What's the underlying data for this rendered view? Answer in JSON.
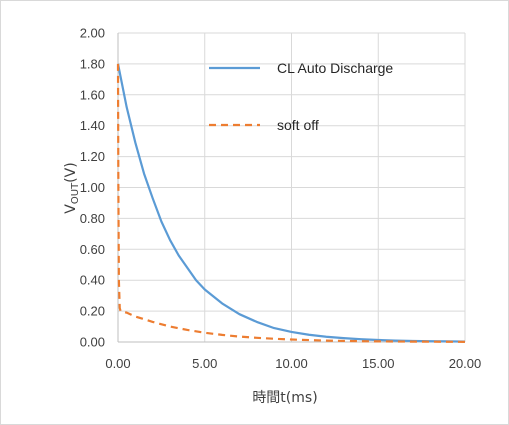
{
  "chart_data": {
    "type": "line",
    "title": "",
    "xlabel": "時間t(ms)",
    "ylabel": {
      "main": "V",
      "sub": "OUT",
      "suffix": "(V)"
    },
    "xlim": [
      0,
      20
    ],
    "ylim": [
      0,
      2
    ],
    "xticks": [
      "0.00",
      "5.00",
      "10.00",
      "15.00",
      "20.00"
    ],
    "yticks": [
      "0.00",
      "0.20",
      "0.40",
      "0.60",
      "0.80",
      "1.00",
      "1.20",
      "1.40",
      "1.60",
      "1.80",
      "2.00"
    ],
    "grid": true,
    "legend_position": "top-right (inside plot)",
    "series": [
      {
        "name": "CL Auto Discharge",
        "color": "#5b9bd5",
        "dash": "solid",
        "x": [
          0,
          0.5,
          1,
          1.5,
          2,
          2.5,
          3,
          3.5,
          4,
          4.5,
          5,
          6,
          7,
          8,
          9,
          10,
          11,
          12,
          13,
          14,
          15,
          16,
          17,
          18,
          19,
          20
        ],
        "y": [
          1.8,
          1.52,
          1.29,
          1.09,
          0.93,
          0.78,
          0.66,
          0.56,
          0.48,
          0.4,
          0.34,
          0.25,
          0.18,
          0.13,
          0.09,
          0.065,
          0.047,
          0.034,
          0.025,
          0.018,
          0.013,
          0.009,
          0.007,
          0.005,
          0.004,
          0.003
        ]
      },
      {
        "name": "soft off",
        "color": "#ed7d31",
        "dash": "dashed",
        "x": [
          0,
          0.02,
          0.05,
          0.1,
          0.15,
          0.5,
          1,
          2,
          3,
          4,
          5,
          6,
          7,
          8,
          9,
          10,
          12,
          14,
          16,
          18,
          20
        ],
        "y": [
          1.8,
          1.0,
          0.4,
          0.22,
          0.2,
          0.19,
          0.165,
          0.13,
          0.1,
          0.078,
          0.06,
          0.046,
          0.035,
          0.027,
          0.021,
          0.016,
          0.009,
          0.005,
          0.003,
          0.002,
          0.001
        ]
      }
    ]
  }
}
